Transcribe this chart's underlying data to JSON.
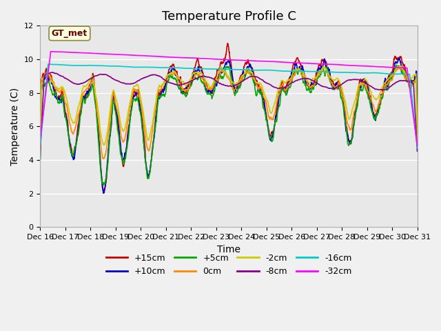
{
  "title": "Temperature Profile C",
  "xlabel": "Time",
  "ylabel": "Temperature (C)",
  "ylim": [
    0,
    12
  ],
  "xlim_days": [
    0,
    15
  ],
  "x_tick_labels": [
    "Dec 16",
    "Dec 17",
    "Dec 18",
    "Dec 19",
    "Dec 20",
    "Dec 21",
    "Dec 22",
    "Dec 23",
    "Dec 24",
    "Dec 25",
    "Dec 26",
    "Dec 27",
    "Dec 28",
    "Dec 29",
    "Dec 30",
    "Dec 31"
  ],
  "series": [
    {
      "label": "+15cm",
      "color": "#cc0000",
      "lw": 1.2
    },
    {
      "label": "+10cm",
      "color": "#0000cc",
      "lw": 1.2
    },
    {
      "label": "+5cm",
      "color": "#00aa00",
      "lw": 1.2
    },
    {
      "label": "0cm",
      "color": "#ff8800",
      "lw": 1.2
    },
    {
      "label": "-2cm",
      "color": "#cccc00",
      "lw": 1.2
    },
    {
      "label": "-8cm",
      "color": "#880088",
      "lw": 1.2
    },
    {
      "label": "-16cm",
      "color": "#00cccc",
      "lw": 1.2
    },
    {
      "label": "-32cm",
      "color": "#ff00ff",
      "lw": 1.2
    }
  ],
  "annotation_text": "GT_met",
  "bg_color": "#e8e8e8",
  "grid_color": "#ffffff",
  "title_fontsize": 13,
  "axis_fontsize": 10,
  "tick_fontsize": 8,
  "legend_fontsize": 9
}
